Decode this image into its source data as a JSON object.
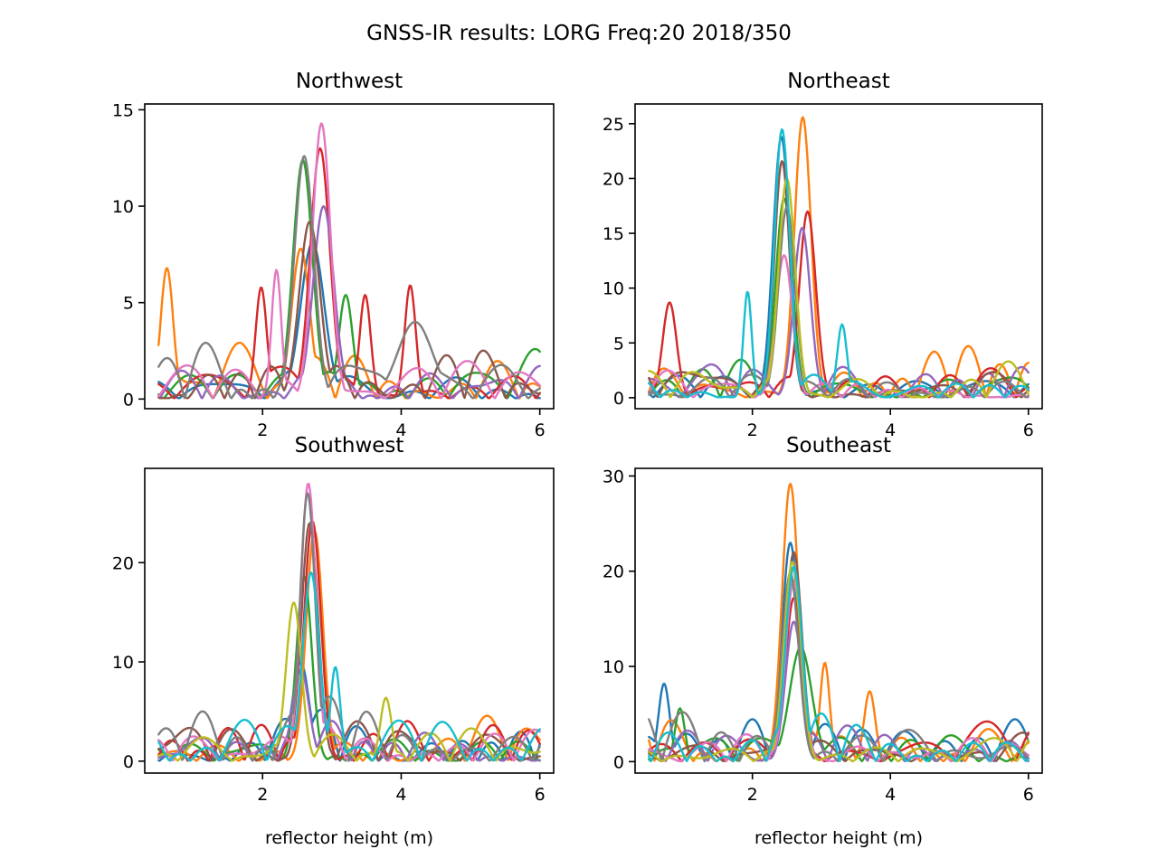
{
  "figure": {
    "title": "GNSS-IR results: LORG Freq:20 2018/350"
  },
  "colors": [
    "#1f77b4",
    "#ff7f0e",
    "#2ca02c",
    "#d62728",
    "#9467bd",
    "#8c564b",
    "#e377c2",
    "#7f7f7f",
    "#bcbd22",
    "#17becf"
  ],
  "chart_data": [
    {
      "type": "line",
      "title": "Northwest",
      "xlabel": "",
      "ylabel": "",
      "xlim": [
        0.3,
        6.2
      ],
      "ylim": [
        -0.5,
        15.3
      ],
      "xticks": [
        2,
        4,
        6
      ],
      "yticks": [
        0,
        5,
        10,
        15
      ],
      "grid": false,
      "series": [
        {
          "peak_x": 2.72,
          "peak_y": 8.1,
          "width": 0.17,
          "noise": 1.9,
          "seed": 11
        },
        {
          "peak_x": 2.55,
          "peak_y": 7.8,
          "width": 0.13,
          "noise": 2.6,
          "seed": 12,
          "extra": [
            [
              0.62,
              6.8,
              0.09
            ]
          ]
        },
        {
          "peak_x": 2.58,
          "peak_y": 12.4,
          "width": 0.14,
          "noise": 2.3,
          "seed": 13,
          "extra": [
            [
              3.2,
              5.4,
              0.1
            ]
          ]
        },
        {
          "peak_x": 2.83,
          "peak_y": 13.0,
          "width": 0.14,
          "noise": 2.4,
          "seed": 14,
          "extra": [
            [
              3.48,
              5.4,
              0.08
            ],
            [
              4.13,
              5.9,
              0.08
            ],
            [
              1.98,
              5.8,
              0.08
            ]
          ]
        },
        {
          "peak_x": 2.88,
          "peak_y": 10.0,
          "width": 0.15,
          "noise": 1.8,
          "seed": 15
        },
        {
          "peak_x": 2.68,
          "peak_y": 9.2,
          "width": 0.15,
          "noise": 2.6,
          "seed": 16
        },
        {
          "peak_x": 2.85,
          "peak_y": 14.3,
          "width": 0.13,
          "noise": 2.1,
          "seed": 17,
          "extra": [
            [
              2.2,
              6.7,
              0.07
            ]
          ]
        },
        {
          "peak_x": 2.6,
          "peak_y": 12.6,
          "width": 0.14,
          "noise": 2.5,
          "seed": 18,
          "extra": [
            [
              4.2,
              4.0,
              0.25
            ]
          ]
        }
      ]
    },
    {
      "type": "line",
      "title": "Northeast",
      "xlabel": "",
      "ylabel": "",
      "xlim": [
        0.3,
        6.2
      ],
      "ylim": [
        -1.0,
        26.8
      ],
      "xticks": [
        2,
        4,
        6
      ],
      "yticks": [
        0,
        5,
        10,
        15,
        20,
        25
      ],
      "grid": false,
      "series": [
        {
          "peak_x": 2.42,
          "peak_y": 23.8,
          "width": 0.12,
          "noise": 2.6,
          "seed": 21
        },
        {
          "peak_x": 2.73,
          "peak_y": 25.6,
          "width": 0.12,
          "noise": 3.2,
          "seed": 22
        },
        {
          "peak_x": 2.46,
          "peak_y": 18.2,
          "width": 0.12,
          "noise": 2.6,
          "seed": 23
        },
        {
          "peak_x": 2.8,
          "peak_y": 17.0,
          "width": 0.12,
          "noise": 2.9,
          "seed": 24,
          "extra": [
            [
              0.8,
              8.7,
              0.1
            ]
          ]
        },
        {
          "peak_x": 2.72,
          "peak_y": 15.5,
          "width": 0.12,
          "noise": 2.8,
          "seed": 25
        },
        {
          "peak_x": 2.43,
          "peak_y": 21.6,
          "width": 0.11,
          "noise": 3.0,
          "seed": 26
        },
        {
          "peak_x": 2.46,
          "peak_y": 13.0,
          "width": 0.12,
          "noise": 2.6,
          "seed": 27
        },
        {
          "peak_x": 2.5,
          "peak_y": 17.4,
          "width": 0.12,
          "noise": 2.4,
          "seed": 28
        },
        {
          "peak_x": 2.5,
          "peak_y": 20.0,
          "width": 0.12,
          "noise": 2.6,
          "seed": 29
        },
        {
          "peak_x": 2.43,
          "peak_y": 24.5,
          "width": 0.11,
          "noise": 2.7,
          "seed": 30,
          "extra": [
            [
              1.93,
              9.7,
              0.06
            ],
            [
              3.3,
              6.7,
              0.07
            ]
          ]
        }
      ]
    },
    {
      "type": "line",
      "title": "Southwest",
      "xlabel": "reflector height (m)",
      "ylabel": "",
      "xlim": [
        0.3,
        6.2
      ],
      "ylim": [
        -1.2,
        29.5
      ],
      "xticks": [
        2,
        4,
        6
      ],
      "yticks": [
        0,
        10,
        20
      ],
      "grid": false,
      "series": [
        {
          "peak_x": 2.55,
          "peak_y": 10.0,
          "width": 0.12,
          "noise": 3.8,
          "seed": 31
        },
        {
          "peak_x": 2.75,
          "peak_y": 23.2,
          "width": 0.12,
          "noise": 4.0,
          "seed": 32
        },
        {
          "peak_x": 2.6,
          "peak_y": 18.6,
          "width": 0.11,
          "noise": 3.6,
          "seed": 33
        },
        {
          "peak_x": 2.72,
          "peak_y": 24.2,
          "width": 0.12,
          "noise": 4.0,
          "seed": 34
        },
        {
          "peak_x": 2.55,
          "peak_y": 9.2,
          "width": 0.12,
          "noise": 3.4,
          "seed": 35
        },
        {
          "peak_x": 2.68,
          "peak_y": 24.0,
          "width": 0.12,
          "noise": 4.2,
          "seed": 36
        },
        {
          "peak_x": 2.66,
          "peak_y": 28.0,
          "width": 0.11,
          "noise": 3.8,
          "seed": 37
        },
        {
          "peak_x": 2.65,
          "peak_y": 27.0,
          "width": 0.11,
          "noise": 4.3,
          "seed": 38
        },
        {
          "peak_x": 2.45,
          "peak_y": 16.0,
          "width": 0.11,
          "noise": 3.8,
          "seed": 39,
          "extra": [
            [
              3.78,
              6.4,
              0.08
            ]
          ]
        },
        {
          "peak_x": 2.7,
          "peak_y": 19.0,
          "width": 0.12,
          "noise": 3.6,
          "seed": 40,
          "extra": [
            [
              3.05,
              9.5,
              0.07
            ]
          ]
        }
      ]
    },
    {
      "type": "line",
      "title": "Southeast",
      "xlabel": "reflector height (m)",
      "ylabel": "",
      "xlim": [
        0.3,
        6.2
      ],
      "ylim": [
        -1.2,
        30.8
      ],
      "xticks": [
        2,
        4,
        6
      ],
      "yticks": [
        0,
        10,
        20,
        30
      ],
      "grid": false,
      "series": [
        {
          "peak_x": 2.55,
          "peak_y": 23.0,
          "width": 0.12,
          "noise": 3.6,
          "seed": 41,
          "extra": [
            [
              0.72,
              8.2,
              0.08
            ]
          ]
        },
        {
          "peak_x": 2.55,
          "peak_y": 29.2,
          "width": 0.12,
          "noise": 3.8,
          "seed": 42,
          "extra": [
            [
              3.05,
              10.4,
              0.07
            ],
            [
              3.7,
              7.4,
              0.08
            ]
          ]
        },
        {
          "peak_x": 2.7,
          "peak_y": 12.0,
          "width": 0.16,
          "noise": 3.4,
          "seed": 43,
          "extra": [
            [
              0.95,
              5.6,
              0.07
            ]
          ]
        },
        {
          "peak_x": 2.6,
          "peak_y": 17.2,
          "width": 0.12,
          "noise": 3.4,
          "seed": 44
        },
        {
          "peak_x": 2.6,
          "peak_y": 14.7,
          "width": 0.12,
          "noise": 3.2,
          "seed": 45
        },
        {
          "peak_x": 2.6,
          "peak_y": 22.0,
          "width": 0.12,
          "noise": 3.4,
          "seed": 46
        },
        {
          "peak_x": 2.6,
          "peak_y": 19.0,
          "width": 0.12,
          "noise": 3.2,
          "seed": 47
        },
        {
          "peak_x": 2.55,
          "peak_y": 19.8,
          "width": 0.12,
          "noise": 3.4,
          "seed": 48
        },
        {
          "peak_x": 2.58,
          "peak_y": 21.0,
          "width": 0.12,
          "noise": 3.4,
          "seed": 49
        },
        {
          "peak_x": 2.6,
          "peak_y": 20.5,
          "width": 0.12,
          "noise": 3.4,
          "seed": 50
        }
      ]
    }
  ]
}
